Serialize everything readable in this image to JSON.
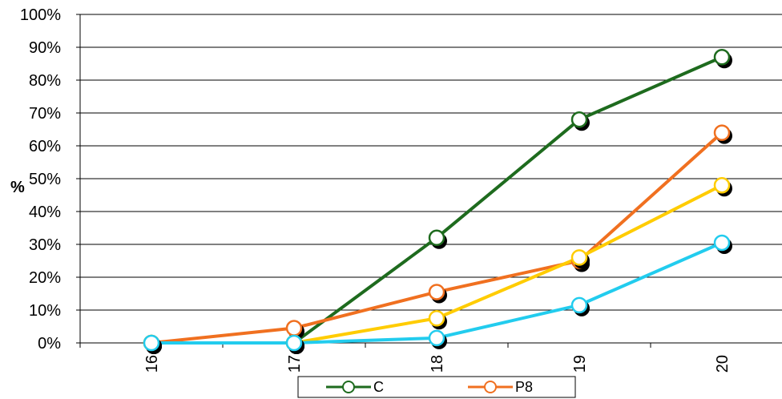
{
  "chart_data": {
    "type": "line",
    "x": [
      "16",
      "17",
      "18",
      "19",
      "20"
    ],
    "ylabel": "%",
    "xlabel": "",
    "ylim": [
      0,
      100
    ],
    "yticks": [
      "0%",
      "10%",
      "20%",
      "30%",
      "40%",
      "50%",
      "60%",
      "70%",
      "80%",
      "90%",
      "100%"
    ],
    "grid": true,
    "legend_position": "bottom",
    "series": [
      {
        "name": "C",
        "color": "#1e6b1e",
        "values": [
          0,
          0,
          32,
          68,
          87
        ]
      },
      {
        "name": "P8",
        "color": "#f07020",
        "values": [
          0,
          4.5,
          15.5,
          25,
          64
        ]
      },
      {
        "name": "",
        "color": "#ffcc00",
        "values": [
          0,
          0,
          7.5,
          26,
          48
        ]
      },
      {
        "name": "",
        "color": "#22ccee",
        "values": [
          0,
          0,
          1.5,
          11.5,
          30.5
        ]
      }
    ]
  }
}
